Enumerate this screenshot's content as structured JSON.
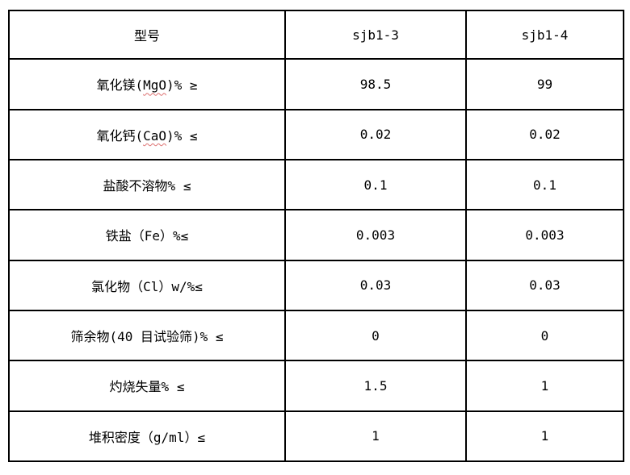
{
  "table": {
    "header": {
      "col1": "型号",
      "col2": "sjb1-3",
      "col3": "sjb1-4"
    },
    "rows": [
      {
        "pre": "氧化镁(",
        "misspelled": "MgO",
        "post": ")% ≥",
        "col2": "98.5",
        "col3": "99"
      },
      {
        "pre": "氧化钙(",
        "misspelled": "CaO",
        "post": ")% ≤",
        "col2": "0.02",
        "col3": "0.02"
      },
      {
        "pre": "盐酸不溶物% ≤",
        "misspelled": "",
        "post": "",
        "col2": "0.1",
        "col3": "0.1"
      },
      {
        "pre": "铁盐（Fe）%≤",
        "misspelled": "",
        "post": "",
        "col2": "0.003",
        "col3": "0.003"
      },
      {
        "pre": "氯化物（Cl）w/%≤",
        "misspelled": "",
        "post": "",
        "col2": "0.03",
        "col3": "0.03"
      },
      {
        "pre": "筛余物(40 目试验筛)% ≤",
        "misspelled": "",
        "post": "",
        "col2": "0",
        "col3": "0"
      },
      {
        "pre": "灼烧失量% ≤",
        "misspelled": "",
        "post": "",
        "col2": "1.5",
        "col3": "1"
      },
      {
        "pre": "堆积密度（g/ml）≤",
        "misspelled": "",
        "post": "",
        "col2": "1",
        "col3": "1"
      }
    ],
    "squiggle_color": "#dd6f6f",
    "border_color": "#000000"
  }
}
